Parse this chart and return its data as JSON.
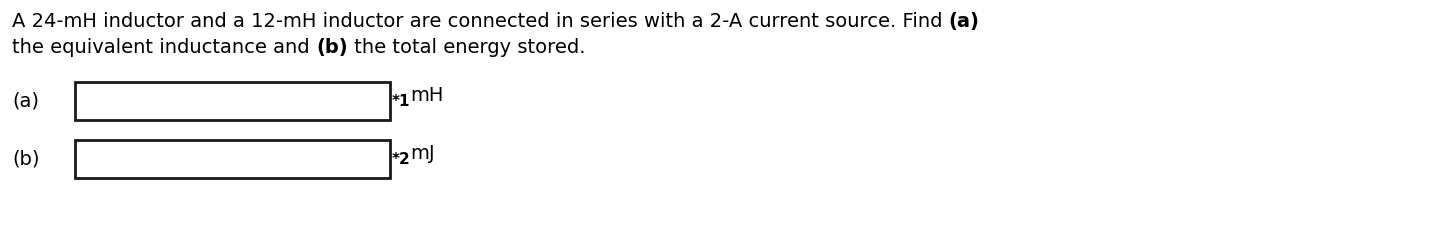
{
  "background_color": "#ffffff",
  "line1_parts": [
    [
      "A 24-mH inductor and a 12-mH inductor are connected in series with a 2-A current source. Find ",
      false
    ],
    [
      "(a)",
      true
    ]
  ],
  "line2_parts": [
    [
      "the equivalent inductance and ",
      false
    ],
    [
      "(b)",
      true
    ],
    [
      " the total energy stored.",
      false
    ]
  ],
  "label_a": "(a)",
  "label_b": "(b)",
  "unit_a": "mH",
  "unit_b": "mJ",
  "marker_a": "*1",
  "marker_b": "*2",
  "text_color": "#000000",
  "box_edge_color": "#1a1a1a",
  "font_size_title": 14,
  "font_size_labels": 14,
  "font_size_units": 14,
  "font_size_marker": 11,
  "fig_width": 14.34,
  "fig_height": 2.5,
  "dpi": 100
}
